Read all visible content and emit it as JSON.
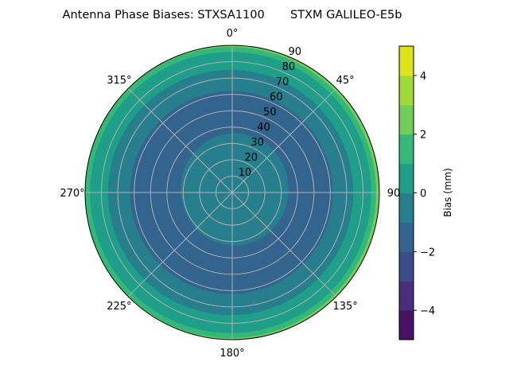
{
  "chart_data": {
    "type": "polar-contour",
    "title": "Antenna Phase Biases: STXSA1100       STXM GALILEO-E5b",
    "angular_axis": {
      "zero_location": "north",
      "direction": "clockwise",
      "tick_labels": [
        {
          "azimuth": 0,
          "label": "0°"
        },
        {
          "azimuth": 45,
          "label": "45°"
        },
        {
          "azimuth": 90,
          "label": "90"
        },
        {
          "azimuth": 135,
          "label": "135°"
        },
        {
          "azimuth": 180,
          "label": "180°"
        },
        {
          "azimuth": 225,
          "label": "225°"
        },
        {
          "azimuth": 270,
          "label": "270°"
        },
        {
          "azimuth": 315,
          "label": "315°"
        }
      ]
    },
    "radial_axis": {
      "range": [
        0,
        90
      ],
      "ticks": [
        10,
        20,
        30,
        40,
        50,
        60,
        70,
        80,
        90
      ],
      "tick_labels": [
        "10",
        "20",
        "30",
        "40",
        "50",
        "60",
        "70",
        "80",
        "90"
      ],
      "grid": true
    },
    "colorbar": {
      "label": "Bias (mm)",
      "range": [
        -5,
        5
      ],
      "ticks": [
        -4,
        -2,
        0,
        2,
        4
      ],
      "tick_labels": [
        "−4",
        "−2",
        "0",
        "2",
        "4"
      ],
      "levels": [
        -5,
        -4,
        -3,
        -2,
        -1,
        0,
        1,
        2,
        3,
        4,
        5
      ],
      "colors": [
        "#471164",
        "#472f7d",
        "#3e4c8a",
        "#32648e",
        "#277f8e",
        "#1f9e89",
        "#35b779",
        "#6ece58",
        "#a0da39",
        "#dde318"
      ],
      "colormap": "viridis"
    },
    "bias_bands": [
      {
        "range": [
          2,
          3
        ],
        "zenith_max": 90,
        "color": "#6ece58"
      },
      {
        "range": [
          1,
          2
        ],
        "zenith_max": 89,
        "color": "#35b779"
      },
      {
        "range": [
          0,
          1
        ],
        "zenith_max": 86,
        "color": "#1f9e89"
      },
      {
        "range": [
          -1,
          0
        ],
        "zenith_max": 75,
        "color": "#277f8e"
      },
      {
        "range": [
          -2,
          -1
        ],
        "zenith_max": 62,
        "color": "#32648e"
      },
      {
        "range": [
          -1,
          0
        ],
        "zenith_max": 33,
        "color": "#277f8e"
      }
    ]
  }
}
